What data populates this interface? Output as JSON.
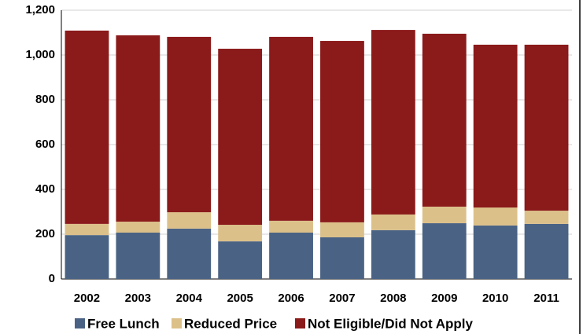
{
  "chart_data": {
    "type": "stacked_bar",
    "categories": [
      "2002",
      "2003",
      "2004",
      "2005",
      "2006",
      "2007",
      "2008",
      "2009",
      "2010",
      "2011"
    ],
    "series": [
      {
        "name": "Free Lunch",
        "color": "#4a6384",
        "values": [
          196,
          207,
          225,
          168,
          207,
          186,
          218,
          249,
          239,
          246
        ]
      },
      {
        "name": "Reduced Price",
        "color": "#dcc08a",
        "values": [
          50,
          49,
          73,
          74,
          53,
          67,
          70,
          74,
          80,
          59
        ]
      },
      {
        "name": "Not Eligible/Did Not Apply",
        "color": "#8b1a1a",
        "values": [
          863,
          832,
          783,
          786,
          821,
          810,
          824,
          772,
          727,
          741
        ]
      }
    ],
    "ylim": [
      0,
      1200
    ],
    "yticks": [
      0,
      200,
      400,
      600,
      800,
      {
        "value": 1000,
        "label": "1,000"
      },
      {
        "value": 1200,
        "label": "1,200"
      }
    ],
    "grid": true
  }
}
